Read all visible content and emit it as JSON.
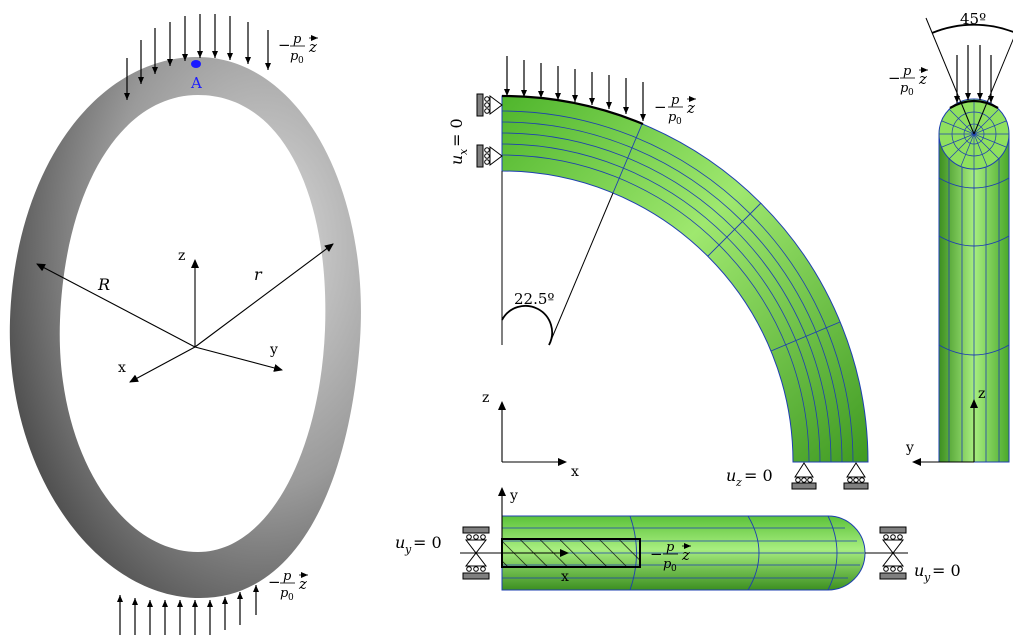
{
  "torus": {
    "point_label": "A",
    "radius_major": "R",
    "radius_minor": "r",
    "axis_z": "z",
    "axis_x": "x",
    "axis_y": "y",
    "load_top": {
      "sign": "−",
      "num": "p",
      "den": "p",
      "den_sub": "0",
      "vec": "z"
    },
    "load_bottom": {
      "sign": "−",
      "num": "p",
      "den": "p",
      "den_sub": "0",
      "vec": "z"
    }
  },
  "side_view": {
    "bc_left": {
      "var": "u",
      "sub": "x",
      "eq": " = 0"
    },
    "bc_bottom": {
      "var": "u",
      "sub": "z",
      "eq": " = 0"
    },
    "angle": "22.5º",
    "axis_z": "z",
    "axis_x": "x",
    "load": {
      "sign": "−",
      "num": "p",
      "den": "p",
      "den_sub": "0",
      "vec": "z"
    }
  },
  "end_view": {
    "angle": "45º",
    "axis_z": "z",
    "axis_y": "y",
    "load": {
      "sign": "−",
      "num": "p",
      "den": "p",
      "den_sub": "0",
      "vec": "z"
    }
  },
  "top_view": {
    "axis_y": "y",
    "axis_x": "x",
    "bc_left": {
      "var": "u",
      "sub": "y",
      "eq": " = 0"
    },
    "bc_right": {
      "var": "u",
      "sub": "y",
      "eq": " = 0"
    },
    "load": {
      "sign": "−",
      "num": "p",
      "den": "p",
      "den_sub": "0",
      "vec": "z"
    }
  },
  "colors": {
    "torus_dark": "#3a3a3a",
    "torus_light": "#cfcfcf",
    "mesh_green": "#5cc23a",
    "mesh_green_light": "#a8ee80",
    "mesh_line": "#1e3fb0",
    "point": "#1a1aff",
    "support": "#808080"
  }
}
